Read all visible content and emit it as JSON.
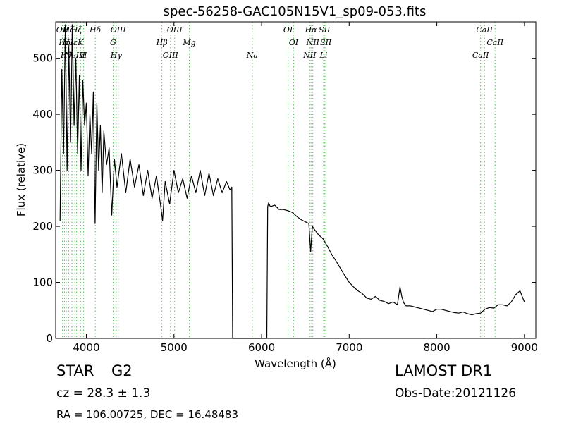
{
  "info": {
    "class_label": "STAR",
    "subclass_label": "G2",
    "cz_text": "cz = 28.3 ± 1.3",
    "coords_text": "RA = 106.00725, DEC = 16.48483",
    "survey_label": "LAMOST DR1",
    "obs_date_text": "Obs-Date:20121126"
  },
  "colors": {
    "line_marker": "#5cb85c",
    "spectrum": "#000000"
  },
  "chart_data": {
    "type": "line",
    "title": "spec-56258-GAC105N15V1_sp09-053.fits",
    "xlabel": "Wavelength (Å)",
    "ylabel": "Flux (relative)",
    "xlim": [
      3650,
      9130
    ],
    "ylim": [
      0,
      565
    ],
    "xticks": [
      4000,
      5000,
      6000,
      7000,
      8000,
      9000
    ],
    "yticks": [
      0,
      100,
      200,
      300,
      400,
      500
    ],
    "grid": false,
    "line_markers": [
      {
        "wavelength": 3727,
        "label": "OII"
      },
      {
        "wavelength": 3750,
        "label": "Hη"
      },
      {
        "wavelength": 3771,
        "label": "Hθ"
      },
      {
        "wavelength": 3798,
        "label": "Hζ"
      },
      {
        "wavelength": 3835,
        "label": "Hε"
      },
      {
        "wavelength": 3869,
        "label": "NeIII"
      },
      {
        "wavelength": 3889,
        "label": "Hζ"
      },
      {
        "wavelength": 3934,
        "label": "K"
      },
      {
        "wavelength": 3969,
        "label": "H"
      },
      {
        "wavelength": 4102,
        "label": "Hδ"
      },
      {
        "wavelength": 4305,
        "label": "G"
      },
      {
        "wavelength": 4341,
        "label": "Hγ"
      },
      {
        "wavelength": 4364,
        "label": "OIII"
      },
      {
        "wavelength": 4862,
        "label": "Hβ"
      },
      {
        "wavelength": 4960,
        "label": "OIII"
      },
      {
        "wavelength": 5008,
        "label": "OIII"
      },
      {
        "wavelength": 5175,
        "label": "Mg"
      },
      {
        "wavelength": 5894,
        "label": "Na"
      },
      {
        "wavelength": 6302,
        "label": "OI"
      },
      {
        "wavelength": 6365,
        "label": "OI"
      },
      {
        "wavelength": 6549,
        "label": "NII"
      },
      {
        "wavelength": 6564,
        "label": "Hα"
      },
      {
        "wavelength": 6585,
        "label": "NII"
      },
      {
        "wavelength": 6708,
        "label": "Li"
      },
      {
        "wavelength": 6718,
        "label": "SII"
      },
      {
        "wavelength": 6733,
        "label": "SII"
      },
      {
        "wavelength": 8500,
        "label": "CaII"
      },
      {
        "wavelength": 8544,
        "label": "CaII"
      },
      {
        "wavelength": 8665,
        "label": "CaII"
      }
    ],
    "series": [
      {
        "x": [
          3700,
          3720,
          3740,
          3760,
          3780,
          3800,
          3820,
          3840,
          3860,
          3880,
          3900,
          3920,
          3940,
          3960,
          3980,
          4000,
          4020,
          4040,
          4060,
          4080,
          4100,
          4120,
          4140,
          4160,
          4180,
          4200,
          4230,
          4260,
          4290,
          4320,
          4350,
          4400,
          4450,
          4500,
          4550,
          4600,
          4650,
          4700,
          4750,
          4800,
          4850,
          4870,
          4900,
          4950,
          5000,
          5050,
          5100,
          5150,
          5200,
          5250,
          5300,
          5350,
          5400,
          5450,
          5500,
          5550,
          5600,
          5640,
          5660,
          5670,
          5700,
          5800,
          5900,
          6000,
          6040,
          6060,
          6070,
          6080,
          6100,
          6150,
          6200,
          6250,
          6300,
          6350,
          6400,
          6450,
          6500,
          6540,
          6560,
          6580,
          6600,
          6650,
          6700,
          6750,
          6800,
          6850,
          6900,
          6950,
          7000,
          7050,
          7100,
          7150,
          7200,
          7250,
          7300,
          7350,
          7400,
          7450,
          7500,
          7550,
          7580,
          7600,
          7620,
          7650,
          7700,
          7750,
          7800,
          7850,
          7900,
          7950,
          8000,
          8050,
          8100,
          8150,
          8200,
          8250,
          8300,
          8350,
          8400,
          8450,
          8500,
          8550,
          8600,
          8650,
          8700,
          8750,
          8800,
          8850,
          8900,
          8950,
          9000
        ],
        "y": [
          210,
          480,
          330,
          560,
          300,
          520,
          350,
          560,
          380,
          500,
          330,
          470,
          300,
          460,
          380,
          420,
          290,
          400,
          330,
          440,
          205,
          420,
          300,
          380,
          260,
          370,
          310,
          340,
          220,
          320,
          270,
          330,
          260,
          320,
          270,
          310,
          255,
          300,
          250,
          290,
          235,
          210,
          280,
          240,
          300,
          260,
          285,
          250,
          290,
          260,
          300,
          255,
          295,
          255,
          285,
          260,
          280,
          265,
          270,
          0,
          0,
          0,
          0,
          0,
          0,
          0,
          235,
          242,
          235,
          238,
          230,
          230,
          228,
          225,
          218,
          212,
          208,
          205,
          155,
          200,
          195,
          185,
          178,
          165,
          150,
          138,
          125,
          112,
          100,
          92,
          85,
          80,
          72,
          70,
          75,
          68,
          66,
          62,
          65,
          60,
          92,
          75,
          64,
          58,
          58,
          56,
          54,
          52,
          50,
          48,
          52,
          52,
          50,
          48,
          46,
          45,
          47,
          44,
          42,
          44,
          45,
          52,
          55,
          54,
          60,
          60,
          58,
          65,
          78,
          85,
          65
        ]
      }
    ]
  }
}
